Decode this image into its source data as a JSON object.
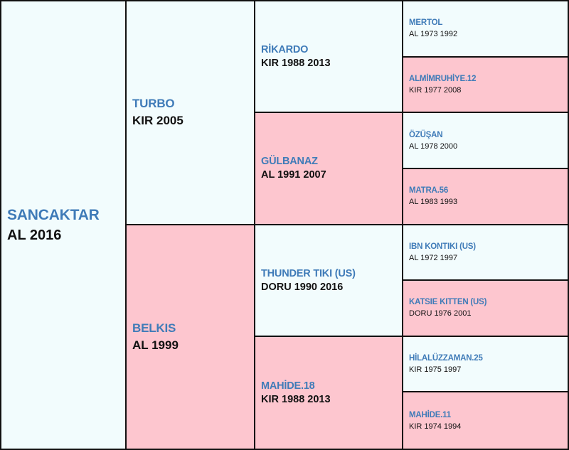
{
  "pedigree": {
    "horse": {
      "name": "SANCAKTAR",
      "info": "AL 2016"
    },
    "sire": {
      "name": "TURBO",
      "info": "KIR 2005"
    },
    "dam": {
      "name": "BELKIS",
      "info": "AL 1999"
    },
    "sire_sire": {
      "name": "RİKARDO",
      "info": "KIR 1988 2013"
    },
    "sire_dam": {
      "name": "GÜLBANAZ",
      "info": "AL 1991 2007"
    },
    "dam_sire": {
      "name": "THUNDER TIKI (US)",
      "info": "DORU 1990 2016"
    },
    "dam_dam": {
      "name": "MAHİDE.18",
      "info": "KIR 1988 2013"
    },
    "ggp": [
      {
        "name": "MERTOL",
        "info": "AL 1973 1992"
      },
      {
        "name": "ALMİMRUHİYE.12",
        "info": "KIR 1977 2008"
      },
      {
        "name": "ÖZÜŞAN",
        "info": "AL 1978 2000"
      },
      {
        "name": "MATRA.56",
        "info": "AL 1983 1993"
      },
      {
        "name": "IBN KONTIKI (US)",
        "info": "AL 1972 1997"
      },
      {
        "name": "KATSIE KITTEN (US)",
        "info": "DORU 1976 2001"
      },
      {
        "name": "HİLALÜZZAMAN.25",
        "info": "KIR 1975 1997"
      },
      {
        "name": "MAHİDE.11",
        "info": "KIR 1974 1994"
      }
    ]
  },
  "colors": {
    "male_bg": "#f2fcfd",
    "female_bg": "#fdc6cf",
    "name_text": "#3f7bb8",
    "info_text": "#111111",
    "border": "#111111"
  }
}
